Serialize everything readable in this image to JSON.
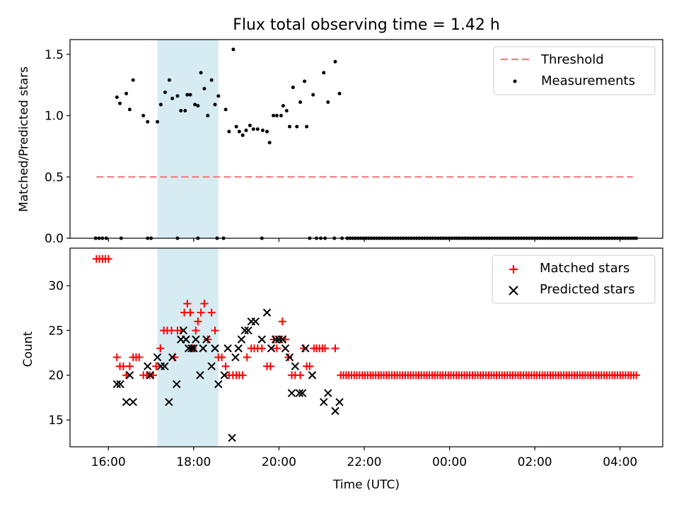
{
  "chart_data": [
    {
      "type": "scatter",
      "title": "Flux total observing time = 1.42 h",
      "xlabel": "",
      "ylabel": "Matched/Predicted stars",
      "xlim": [
        15.1,
        29.0
      ],
      "ylim": [
        0.0,
        1.62
      ],
      "yticks": [
        0.0,
        0.5,
        1.0,
        1.5
      ],
      "ytick_labels": [
        "0.0",
        "0.5",
        "1.0",
        "1.5"
      ],
      "highlight_span": [
        17.15,
        18.58
      ],
      "legend_position": "upper right",
      "threshold": {
        "name": "Threshold",
        "x": [
          15.72,
          28.3
        ],
        "y": 0.5,
        "color": "#f08080"
      },
      "series": [
        {
          "name": "Measurements",
          "color": "#000000",
          "points": [
            [
              15.7,
              0
            ],
            [
              15.78,
              0
            ],
            [
              15.86,
              0
            ],
            [
              15.95,
              0
            ],
            [
              16.3,
              0
            ],
            [
              16.92,
              0
            ],
            [
              17.0,
              0
            ],
            [
              17.62,
              0
            ],
            [
              18.1,
              0
            ],
            [
              18.55,
              0
            ],
            [
              18.7,
              0
            ],
            [
              19.6,
              0
            ],
            [
              20.72,
              0
            ],
            [
              20.88,
              0
            ],
            [
              20.98,
              0
            ],
            [
              21.08,
              0
            ],
            [
              21.3,
              0
            ],
            [
              21.48,
              0
            ],
            [
              16.2,
              1.15
            ],
            [
              16.27,
              1.1
            ],
            [
              16.42,
              1.18
            ],
            [
              16.5,
              1.05
            ],
            [
              16.58,
              1.29
            ],
            [
              16.82,
              1.0
            ],
            [
              16.92,
              0.95
            ],
            [
              17.15,
              0.95
            ],
            [
              17.23,
              1.09
            ],
            [
              17.33,
              1.19
            ],
            [
              17.43,
              1.29
            ],
            [
              17.5,
              1.14
            ],
            [
              17.62,
              1.16
            ],
            [
              17.7,
              1.04
            ],
            [
              17.8,
              1.04
            ],
            [
              17.85,
              1.17
            ],
            [
              17.92,
              1.17
            ],
            [
              18.03,
              1.09
            ],
            [
              18.1,
              1.08
            ],
            [
              18.17,
              1.35
            ],
            [
              18.25,
              1.22
            ],
            [
              18.33,
              1.0
            ],
            [
              18.42,
              1.29
            ],
            [
              18.5,
              1.09
            ],
            [
              18.58,
              1.16
            ],
            [
              18.75,
              1.05
            ],
            [
              18.83,
              0.87
            ],
            [
              18.93,
              1.54
            ],
            [
              19.0,
              0.91
            ],
            [
              19.07,
              0.87
            ],
            [
              19.15,
              0.84
            ],
            [
              19.23,
              0.88
            ],
            [
              19.32,
              0.92
            ],
            [
              19.4,
              0.89
            ],
            [
              19.5,
              0.89
            ],
            [
              19.62,
              0.88
            ],
            [
              19.72,
              0.87
            ],
            [
              19.78,
              0.78
            ],
            [
              19.87,
              1.0
            ],
            [
              19.95,
              1.0
            ],
            [
              20.05,
              1.0
            ],
            [
              20.1,
              1.08
            ],
            [
              20.18,
              1.04
            ],
            [
              20.25,
              0.91
            ],
            [
              20.33,
              1.23
            ],
            [
              20.42,
              0.91
            ],
            [
              20.5,
              1.11
            ],
            [
              20.6,
              1.28
            ],
            [
              20.65,
              0.91
            ],
            [
              20.8,
              1.17
            ],
            [
              21.05,
              1.35
            ],
            [
              21.15,
              1.11
            ],
            [
              21.32,
              1.44
            ],
            [
              21.42,
              1.18
            ]
          ],
          "zero_run": {
            "from": 21.6,
            "to": 28.38,
            "count": 109
          }
        }
      ]
    },
    {
      "type": "scatter",
      "title": "",
      "xlabel": "Time (UTC)",
      "ylabel": "Count",
      "xlim": [
        15.1,
        29.0
      ],
      "ylim": [
        12.0,
        34.2
      ],
      "yticks": [
        15,
        20,
        25,
        30
      ],
      "ytick_labels": [
        "15",
        "20",
        "25",
        "30"
      ],
      "xticks": [
        16,
        18,
        20,
        22,
        24,
        26,
        28
      ],
      "xtick_labels": [
        "16:00",
        "18:00",
        "20:00",
        "22:00",
        "00:00",
        "02:00",
        "04:00"
      ],
      "highlight_span": [
        17.15,
        18.58
      ],
      "legend_position": "upper right",
      "series": [
        {
          "name": "Matched stars",
          "color": "#ff0000",
          "marker": "+",
          "points": [
            [
              15.72,
              33
            ],
            [
              15.79,
              33
            ],
            [
              15.86,
              33
            ],
            [
              15.93,
              33
            ],
            [
              16.0,
              33
            ],
            [
              16.2,
              22
            ],
            [
              16.27,
              21
            ],
            [
              16.35,
              21
            ],
            [
              16.42,
              20
            ],
            [
              16.5,
              21
            ],
            [
              16.58,
              22
            ],
            [
              16.65,
              22
            ],
            [
              16.72,
              22
            ],
            [
              16.82,
              20
            ],
            [
              16.9,
              20
            ],
            [
              16.97,
              20
            ],
            [
              17.05,
              20
            ],
            [
              17.12,
              21
            ],
            [
              17.22,
              23
            ],
            [
              17.3,
              25
            ],
            [
              17.38,
              25
            ],
            [
              17.48,
              25
            ],
            [
              17.55,
              22
            ],
            [
              17.62,
              25
            ],
            [
              17.7,
              25
            ],
            [
              17.78,
              27
            ],
            [
              17.85,
              28
            ],
            [
              17.92,
              27
            ],
            [
              17.98,
              23
            ],
            [
              18.05,
              25
            ],
            [
              18.1,
              26
            ],
            [
              18.17,
              27
            ],
            [
              18.25,
              28
            ],
            [
              18.33,
              24
            ],
            [
              18.42,
              27
            ],
            [
              18.5,
              25
            ],
            [
              18.58,
              22
            ],
            [
              18.66,
              22
            ],
            [
              18.75,
              21
            ],
            [
              18.83,
              20
            ],
            [
              18.92,
              20
            ],
            [
              19.0,
              20
            ],
            [
              19.07,
              20
            ],
            [
              19.15,
              20
            ],
            [
              19.25,
              22
            ],
            [
              19.35,
              23
            ],
            [
              19.42,
              23
            ],
            [
              19.5,
              23
            ],
            [
              19.6,
              23
            ],
            [
              19.72,
              21
            ],
            [
              19.8,
              21
            ],
            [
              19.88,
              24
            ],
            [
              19.95,
              23
            ],
            [
              20.03,
              24
            ],
            [
              20.08,
              26
            ],
            [
              20.15,
              24
            ],
            [
              20.22,
              22
            ],
            [
              20.3,
              20
            ],
            [
              20.38,
              20
            ],
            [
              20.5,
              20
            ],
            [
              20.58,
              23
            ],
            [
              20.65,
              21
            ],
            [
              20.72,
              21
            ],
            [
              20.82,
              23
            ],
            [
              20.88,
              23
            ],
            [
              20.95,
              23
            ],
            [
              21.02,
              23
            ],
            [
              21.08,
              23
            ],
            [
              21.32,
              23
            ]
          ],
          "constant_run": {
            "from": 21.45,
            "to": 28.38,
            "count": 111,
            "value": 20
          }
        },
        {
          "name": "Predicted stars",
          "color": "#000000",
          "marker": "x",
          "points": [
            [
              16.2,
              19
            ],
            [
              16.28,
              19
            ],
            [
              16.42,
              17
            ],
            [
              16.5,
              20
            ],
            [
              16.58,
              17
            ],
            [
              16.92,
              21
            ],
            [
              16.98,
              20
            ],
            [
              17.15,
              22
            ],
            [
              17.23,
              21
            ],
            [
              17.32,
              21
            ],
            [
              17.42,
              17
            ],
            [
              17.5,
              22
            ],
            [
              17.6,
              19
            ],
            [
              17.7,
              24
            ],
            [
              17.76,
              25
            ],
            [
              17.82,
              24
            ],
            [
              17.88,
              23
            ],
            [
              17.95,
              23
            ],
            [
              18.0,
              23
            ],
            [
              18.05,
              24
            ],
            [
              18.15,
              20
            ],
            [
              18.22,
              23
            ],
            [
              18.3,
              24
            ],
            [
              18.42,
              21
            ],
            [
              18.5,
              23
            ],
            [
              18.58,
              19
            ],
            [
              18.72,
              20
            ],
            [
              18.8,
              23
            ],
            [
              18.9,
              13
            ],
            [
              18.98,
              22
            ],
            [
              19.05,
              23
            ],
            [
              19.12,
              24
            ],
            [
              19.2,
              25
            ],
            [
              19.28,
              25
            ],
            [
              19.35,
              26
            ],
            [
              19.45,
              26
            ],
            [
              19.6,
              24
            ],
            [
              19.72,
              27
            ],
            [
              19.82,
              23
            ],
            [
              19.92,
              24
            ],
            [
              20.0,
              24
            ],
            [
              20.08,
              24
            ],
            [
              20.15,
              23
            ],
            [
              20.25,
              22
            ],
            [
              20.3,
              18
            ],
            [
              20.38,
              21
            ],
            [
              20.48,
              18
            ],
            [
              20.55,
              18
            ],
            [
              20.62,
              23
            ],
            [
              20.78,
              20
            ],
            [
              21.05,
              17
            ],
            [
              21.15,
              18
            ],
            [
              21.32,
              16
            ],
            [
              21.42,
              17
            ]
          ]
        }
      ]
    }
  ]
}
